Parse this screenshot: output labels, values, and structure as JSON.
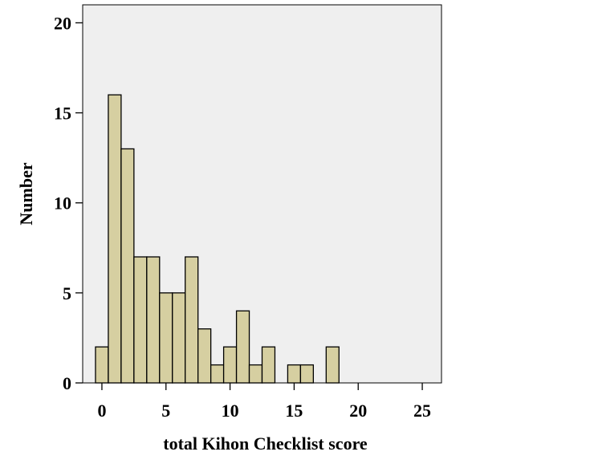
{
  "chart_data": {
    "type": "bar",
    "title": "",
    "xlabel": "total Kihon Checklist score",
    "ylabel": "Number",
    "xlim": [
      -1.5,
      26.5
    ],
    "ylim": [
      0,
      21
    ],
    "x_ticks": [
      0,
      5,
      10,
      15,
      20,
      25
    ],
    "y_ticks": [
      0,
      5,
      10,
      15,
      20
    ],
    "bin_width": 1,
    "grid": false,
    "colors": {
      "bar_fill": "#d6cfa1",
      "bar_stroke": "#000000",
      "plot_bg": "#efefef"
    },
    "bins": [
      {
        "x": 0,
        "value": 2
      },
      {
        "x": 1,
        "value": 16
      },
      {
        "x": 2,
        "value": 13
      },
      {
        "x": 3,
        "value": 7
      },
      {
        "x": 4,
        "value": 7
      },
      {
        "x": 5,
        "value": 5
      },
      {
        "x": 6,
        "value": 5
      },
      {
        "x": 7,
        "value": 7
      },
      {
        "x": 8,
        "value": 3
      },
      {
        "x": 9,
        "value": 1
      },
      {
        "x": 10,
        "value": 2
      },
      {
        "x": 11,
        "value": 4
      },
      {
        "x": 12,
        "value": 1
      },
      {
        "x": 13,
        "value": 2
      },
      {
        "x": 15,
        "value": 1
      },
      {
        "x": 16,
        "value": 1
      },
      {
        "x": 18,
        "value": 2
      }
    ]
  }
}
